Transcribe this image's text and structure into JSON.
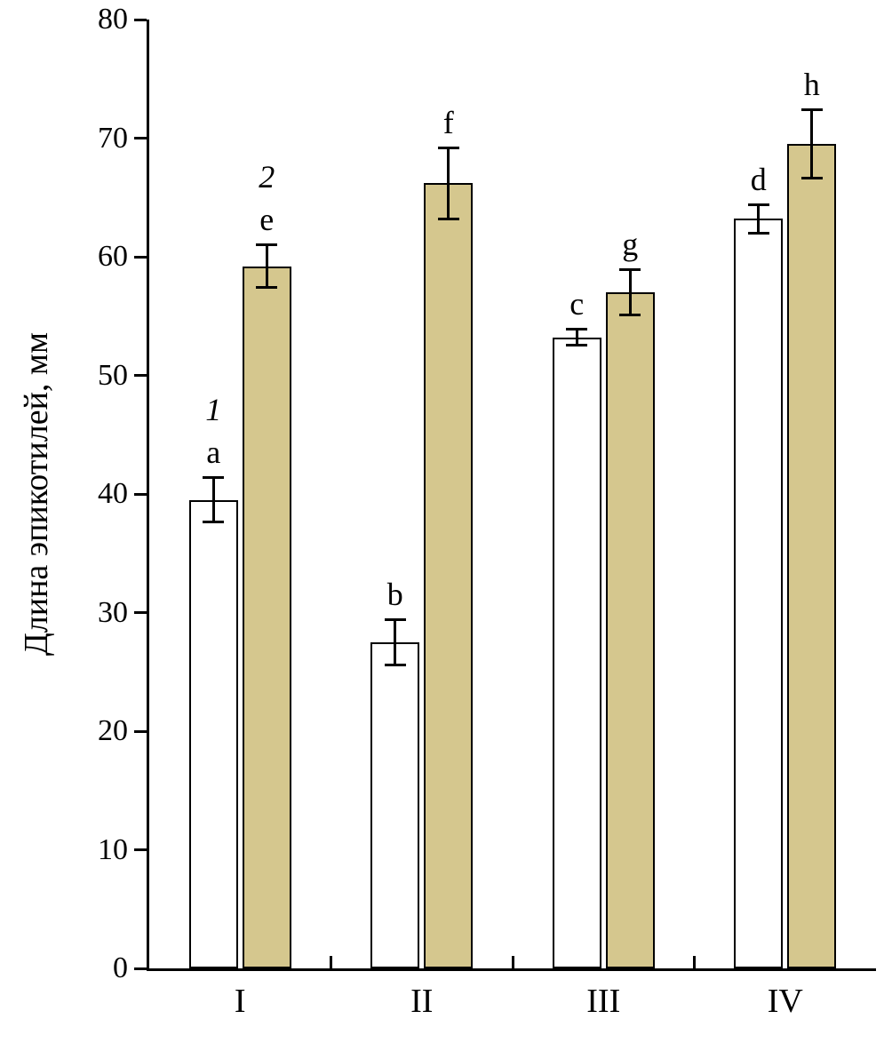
{
  "chart_data": {
    "type": "bar",
    "title": "",
    "xlabel": "",
    "ylabel": "Длина эпикотилей, мм",
    "ylim": [
      0,
      80
    ],
    "yticks": [
      0,
      10,
      20,
      30,
      40,
      50,
      60,
      70,
      80
    ],
    "ytick_step": 10,
    "grid": false,
    "legend_position": "none",
    "categories": [
      "I",
      "II",
      "III",
      "IV"
    ],
    "series": [
      {
        "name": "1",
        "fill": "#ffffff",
        "values": [
          39.5,
          27.5,
          53.2,
          63.2
        ],
        "errors": [
          2.0,
          2.0,
          0.8,
          1.3
        ],
        "point_labels": [
          "a",
          "b",
          "c",
          "d"
        ]
      },
      {
        "name": "2",
        "fill": "#d5c78e",
        "values": [
          59.2,
          66.2,
          57.0,
          69.5
        ],
        "errors": [
          1.9,
          3.1,
          2.0,
          3.0
        ],
        "point_labels": [
          "e",
          "f",
          "g",
          "h"
        ]
      }
    ],
    "series_annotations": [
      {
        "text": "1",
        "series": 0,
        "category": 0
      },
      {
        "text": "2",
        "series": 1,
        "category": 0
      }
    ]
  },
  "colors": {
    "background": "#ffffff",
    "axis": "#000000",
    "bar_border": "#000000",
    "error_bar": "#000000",
    "bar_series_1_fill": "#ffffff",
    "bar_series_2_fill": "#d5c78e"
  }
}
